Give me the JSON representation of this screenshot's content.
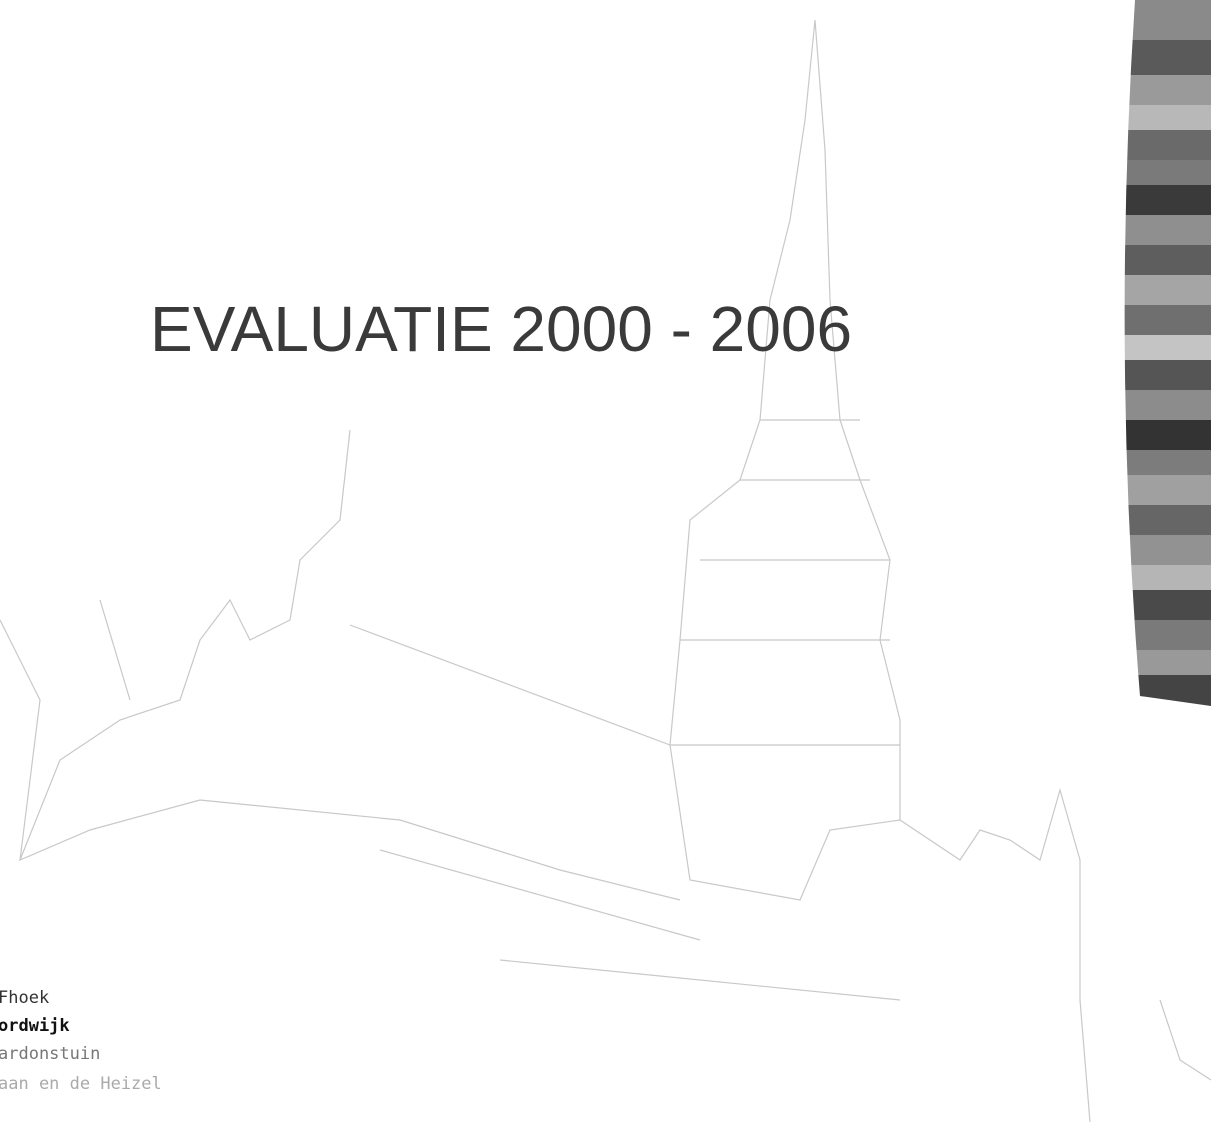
{
  "title": "EVALUATIE 2000 - 2006",
  "items": [
    "Fhoek",
    "ordwijk",
    "ardonstuin",
    "aan en de Heizel"
  ]
}
